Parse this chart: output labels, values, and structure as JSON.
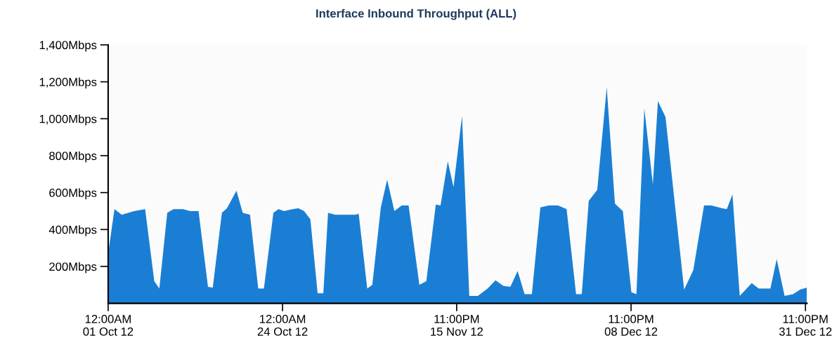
{
  "chart_data": {
    "type": "area",
    "title": "Interface Inbound Throughput (ALL)",
    "x": [
      "2012-10-01T00:00",
      "2012-10-01T20:00",
      "2012-10-02T19:00",
      "2012-10-04T11:00",
      "2012-10-05T21:00",
      "2012-10-07T02:00",
      "2012-10-07T18:00",
      "2012-10-08T19:00",
      "2012-10-09T15:00",
      "2012-10-10T21:00",
      "2012-10-11T19:00",
      "2012-10-12T22:00",
      "2012-10-14T04:00",
      "2012-10-14T19:00",
      "2012-10-16T00:00",
      "2012-10-16T16:00",
      "2012-10-17T22:00",
      "2012-10-18T18:00",
      "2012-10-19T17:00",
      "2012-10-20T19:00",
      "2012-10-21T13:00",
      "2012-10-22T19:00",
      "2012-10-23T11:00",
      "2012-10-24T05:00",
      "2012-10-25T08:00",
      "2012-10-26T02:00",
      "2012-10-26T20:00",
      "2012-10-27T16:00",
      "2012-10-28T15:00",
      "2012-10-29T09:00",
      "2012-10-30T00:00",
      "2012-10-30T23:00",
      "2012-10-31T17:00",
      "2012-11-02T14:00",
      "2012-11-03T01:00",
      "2012-11-04T04:00",
      "2012-11-04T20:00",
      "2012-11-05T23:00",
      "2012-11-06T19:00",
      "2012-11-07T18:00",
      "2012-11-08T17:00",
      "2012-11-09T15:00",
      "2012-11-11T01:00",
      "2012-11-11T23:00",
      "2012-11-13T05:00",
      "2012-11-13T20:00",
      "2012-11-14T19:00",
      "2012-11-15T13:00",
      "2012-11-16T16:00",
      "2012-11-17T15:00",
      "2012-11-18T18:00",
      "2012-11-20T01:00",
      "2012-11-21T02:00",
      "2012-11-22T03:00",
      "2012-11-23T01:00",
      "2012-11-24T00:00",
      "2012-11-24T22:00",
      "2012-11-25T21:00",
      "2012-11-27T00:00",
      "2012-11-28T03:00",
      "2012-11-29T08:00",
      "2012-11-30T11:00",
      "2012-12-01T17:00",
      "2012-12-02T11:00",
      "2012-12-03T09:00",
      "2012-12-04T12:00",
      "2012-12-05T18:00",
      "2012-12-06T20:00",
      "2012-12-07T21:00",
      "2012-12-09T00:00",
      "2012-12-09T16:00",
      "2012-12-10T17:00",
      "2012-12-11T20:00",
      "2012-12-12T12:00",
      "2012-12-13T12:00",
      "2012-12-14T20:00",
      "2012-12-15T23:00",
      "2012-12-17T04:00",
      "2012-12-18T14:00",
      "2012-12-19T13:00",
      "2012-12-20T23:00",
      "2012-12-21T14:00",
      "2012-12-22T08:00",
      "2012-12-23T07:00",
      "2012-12-24T21:00",
      "2012-12-25T19:00",
      "2012-12-27T08:00",
      "2012-12-28T04:00",
      "2012-12-29T05:00",
      "2012-12-30T08:00",
      "2012-12-31T06:00",
      "2013-01-01T03:00"
    ],
    "values": [
      270,
      510,
      480,
      500,
      510,
      120,
      80,
      490,
      510,
      510,
      500,
      500,
      90,
      85,
      490,
      515,
      610,
      490,
      480,
      80,
      80,
      490,
      510,
      500,
      510,
      515,
      500,
      455,
      55,
      55,
      490,
      480,
      480,
      480,
      485,
      80,
      100,
      520,
      670,
      500,
      530,
      530,
      100,
      120,
      535,
      530,
      770,
      630,
      1015,
      40,
      40,
      80,
      125,
      95,
      90,
      175,
      50,
      50,
      520,
      530,
      530,
      510,
      50,
      50,
      555,
      615,
      1170,
      540,
      500,
      60,
      50,
      1055,
      645,
      1095,
      1010,
      500,
      75,
      180,
      530,
      530,
      515,
      510,
      590,
      40,
      110,
      80,
      80,
      240,
      40,
      50,
      75,
      85
    ],
    "color": "#1a7fd4",
    "xlim": [
      "2012-10-01T00:00",
      "2013-01-01T04:00"
    ],
    "xticks": [
      {
        "value": "2012-10-01T00:00",
        "label": "12:00AM\n01 Oct 12"
      },
      {
        "value": "2012-10-24T00:00",
        "label": "12:00AM\n24 Oct 12"
      },
      {
        "value": "2012-11-15T23:00",
        "label": "11:00PM\n15 Nov 12"
      },
      {
        "value": "2012-12-08T23:00",
        "label": "11:00PM\n08 Dec 12"
      },
      {
        "value": "2012-12-31T23:00",
        "label": "11:00PM\n31 Dec 12"
      }
    ],
    "ylim": [
      0,
      1400
    ],
    "yticks": [
      {
        "value": 200,
        "label": "200Mbps"
      },
      {
        "value": 400,
        "label": "400Mbps"
      },
      {
        "value": 600,
        "label": "600Mbps"
      },
      {
        "value": 800,
        "label": "800Mbps"
      },
      {
        "value": 1000,
        "label": "1,000Mbps"
      },
      {
        "value": 1200,
        "label": "1,200Mbps"
      },
      {
        "value": 1400,
        "label": "1,400Mbps"
      }
    ],
    "grid": false,
    "legend": false
  }
}
